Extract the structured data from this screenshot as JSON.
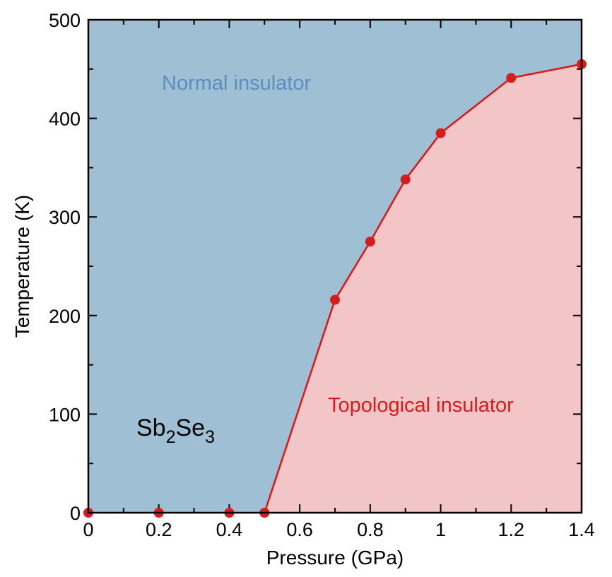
{
  "chart_data": {
    "type": "line",
    "xlabel": "Pressure (GPa)",
    "ylabel": "Temperature (K)",
    "xlim": [
      0,
      1.4
    ],
    "ylim": [
      0,
      500
    ],
    "x_ticks": [
      0,
      0.2,
      0.4,
      0.6,
      0.8,
      1,
      1.2,
      1.4
    ],
    "x_tick_labels": [
      "0",
      "0.2",
      "0.4",
      "0.6",
      "0.8",
      "1",
      "1.2",
      "1.4"
    ],
    "y_ticks": [
      0,
      100,
      200,
      300,
      400,
      500
    ],
    "y_tick_labels": [
      "0",
      "100",
      "200",
      "300",
      "400",
      "500"
    ],
    "grid": false,
    "series": [
      {
        "x": [
          0,
          0.2,
          0.4,
          0.5,
          0.7,
          0.8,
          0.9,
          1.0,
          1.2,
          1.4
        ],
        "y": [
          0,
          0,
          0,
          0,
          216,
          275,
          338,
          385,
          441,
          455
        ]
      }
    ],
    "regions": {
      "upper": {
        "label": "Normal insulator",
        "fill_color": "#9fbfd4",
        "text_color": "#5b8fc0"
      },
      "lower": {
        "label": "Topological insulator",
        "fill_color": "#f2c5c6",
        "text_color": "#d71c1c"
      }
    },
    "annotation": {
      "parts": [
        {
          "text": "Sb",
          "sub": false
        },
        {
          "text": "2",
          "sub": true
        },
        {
          "text": "Se",
          "sub": false
        },
        {
          "text": "3",
          "sub": true
        }
      ]
    },
    "line_color": "#d71c1c"
  }
}
